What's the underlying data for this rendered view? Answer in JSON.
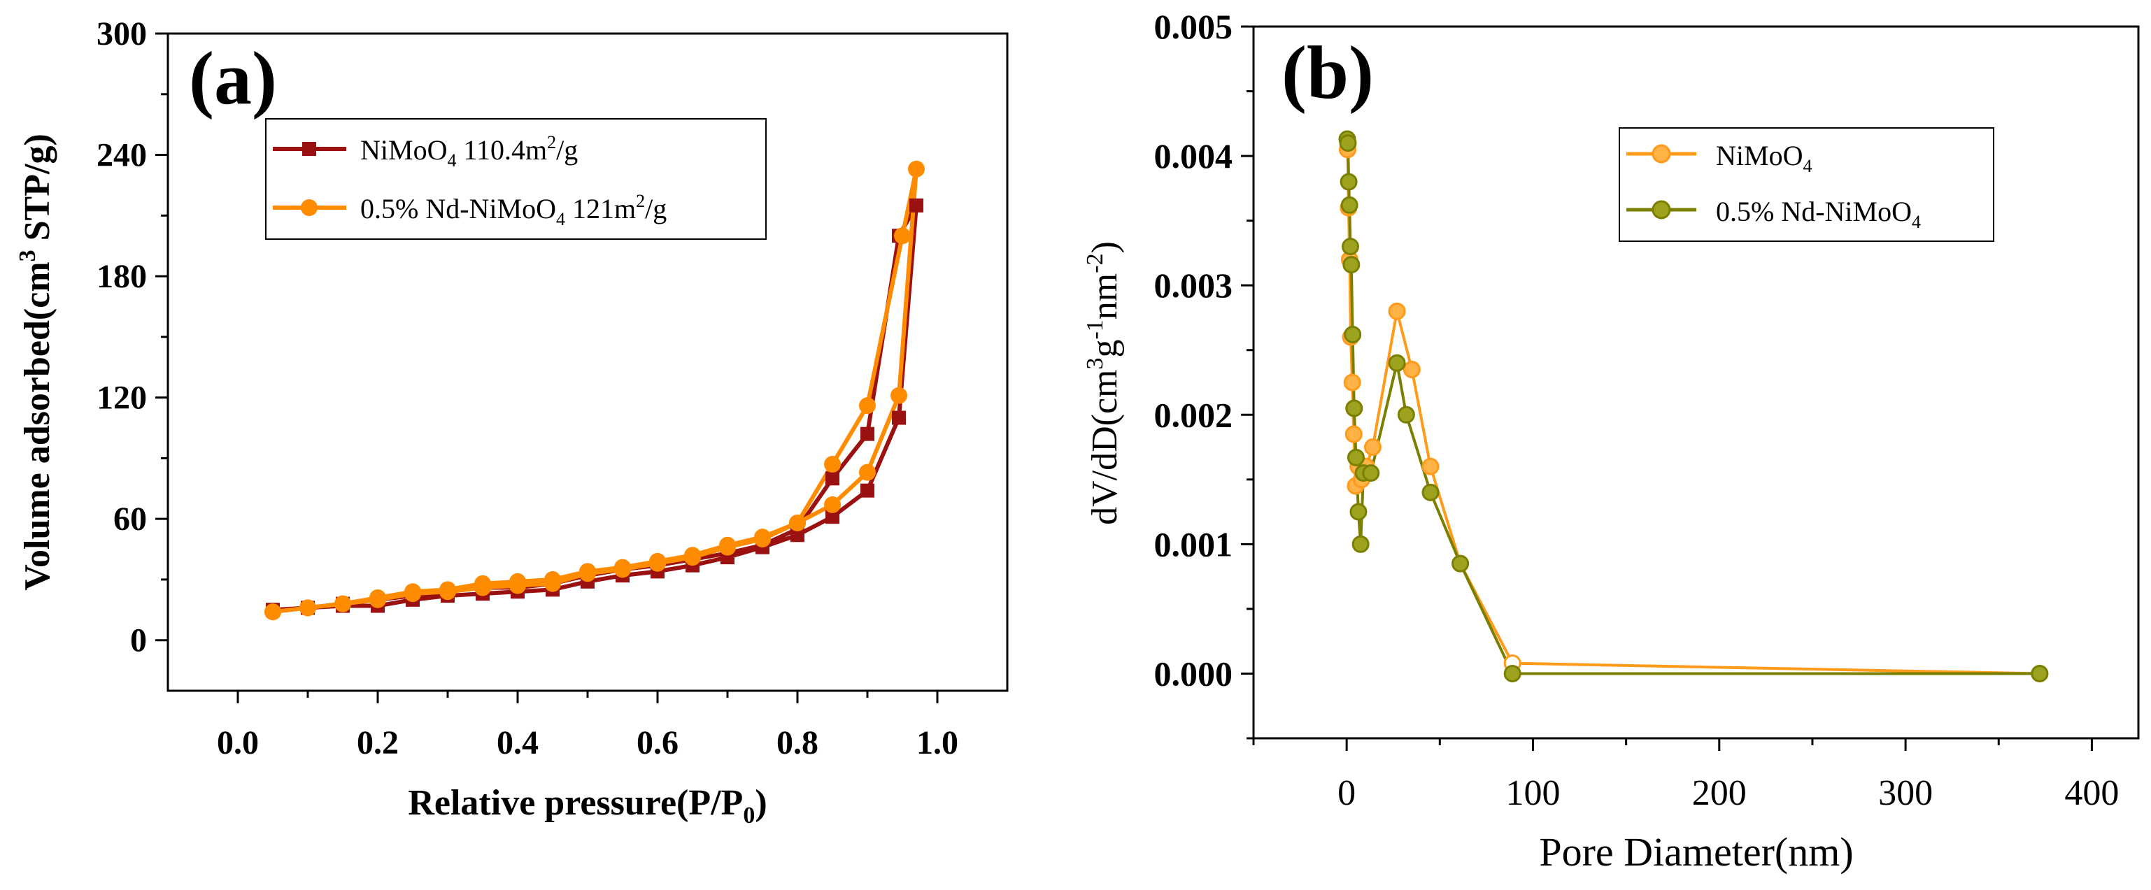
{
  "colors": {
    "axis": "#000000",
    "a_s1": "#9b1111",
    "a_s2": "#ff8c00",
    "b_s1": "#ff9a1a",
    "b_s1_fill": "#ffb347",
    "b_s2": "#7a7f00",
    "b_s2_fill": "#9da31e"
  },
  "chart_data": [
    {
      "id": "a",
      "panel_label": "(a)",
      "type": "line",
      "xlabel_main": "Relative pressure(P/P",
      "xlabel_sub": "0",
      "xlabel_close": ")",
      "ylabel_main": "Volume adsorbed(cm",
      "ylabel_sup": "3",
      "ylabel_rest": " STP/g)",
      "xlim": [
        -0.1,
        1.1
      ],
      "ylim": [
        -25,
        300
      ],
      "xticks": [
        0.0,
        0.2,
        0.4,
        0.6,
        0.8,
        1.0
      ],
      "xtick_labels": [
        "0.0",
        "0.2",
        "0.4",
        "0.6",
        "0.8",
        "1.0"
      ],
      "yticks": [
        0,
        60,
        120,
        180,
        240,
        300
      ],
      "ytick_labels": [
        "0",
        "60",
        "120",
        "180",
        "240",
        "300"
      ],
      "legend_position": "top-left",
      "series": [
        {
          "name": "NiMoO4 110.4m2/g",
          "legend_parts": [
            "NiMoO",
            "4",
            " 110.4m",
            "2",
            "/g"
          ],
          "marker": "square",
          "x": [
            0.05,
            0.1,
            0.15,
            0.2,
            0.25,
            0.3,
            0.35,
            0.4,
            0.45,
            0.5,
            0.55,
            0.6,
            0.65,
            0.7,
            0.75,
            0.8,
            0.85,
            0.9,
            0.945,
            0.97,
            0.945,
            0.9,
            0.85,
            0.8,
            0.75,
            0.7,
            0.65,
            0.6,
            0.55,
            0.5,
            0.45,
            0.4,
            0.35,
            0.3,
            0.25,
            0.2,
            0.15,
            0.1,
            0.05
          ],
          "y": [
            15,
            16,
            17,
            17,
            20,
            22,
            23,
            24,
            25,
            29,
            32,
            34,
            37,
            41,
            46,
            52,
            61,
            74,
            110,
            215,
            200,
            102,
            80,
            55,
            47,
            43,
            40,
            37,
            35,
            32,
            28,
            26,
            26,
            24,
            22,
            20,
            18,
            16,
            15
          ]
        },
        {
          "name": "0.5% Nd-NiMoO4 121m2/g",
          "legend_parts": [
            "0.5% Nd-NiMoO",
            "4",
            " 121m",
            "2",
            "/g"
          ],
          "marker": "circle",
          "x": [
            0.05,
            0.1,
            0.15,
            0.2,
            0.25,
            0.3,
            0.35,
            0.4,
            0.45,
            0.5,
            0.55,
            0.6,
            0.65,
            0.7,
            0.75,
            0.8,
            0.85,
            0.9,
            0.945,
            0.97,
            0.95,
            0.9,
            0.85,
            0.8,
            0.75,
            0.7,
            0.65,
            0.6,
            0.55,
            0.5,
            0.45,
            0.4,
            0.35,
            0.3,
            0.25,
            0.2,
            0.15,
            0.1,
            0.05
          ],
          "y": [
            14,
            16,
            18,
            20,
            23,
            24,
            26,
            27,
            28,
            33,
            35,
            38,
            41,
            46,
            50,
            58,
            67,
            83,
            121,
            233,
            200,
            116,
            87,
            58,
            51,
            47,
            42,
            39,
            36,
            34,
            30,
            29,
            28,
            25,
            24,
            21,
            18,
            16,
            14
          ]
        }
      ]
    },
    {
      "id": "b",
      "panel_label": "(b)",
      "type": "line",
      "xlabel_main": "Pore Diameter(nm)",
      "ylabel_main": "dV/dD(cm",
      "ylabel_sup1": "3",
      "ylabel_mid": "g",
      "ylabel_sup2": "-1",
      "ylabel_mid2": "nm",
      "ylabel_sup3": "-2",
      "ylabel_close": ")",
      "xlim": [
        -50,
        425
      ],
      "ylim": [
        -0.0005,
        0.005
      ],
      "xticks": [
        0,
        100,
        200,
        300,
        400
      ],
      "xtick_labels": [
        "0",
        "100",
        "200",
        "300",
        "400"
      ],
      "yticks": [
        0.0,
        0.001,
        0.002,
        0.003,
        0.004,
        0.005
      ],
      "ytick_labels": [
        "0.000",
        "0.001",
        "0.002",
        "0.003",
        "0.004",
        "0.005"
      ],
      "legend_position": "top-right",
      "series": [
        {
          "name": "NiMoO4",
          "legend_parts": [
            "NiMoO",
            "4"
          ],
          "marker": "circle",
          "x": [
            0.5,
            1.0,
            1.6,
            2.2,
            3.0,
            3.8,
            4.8,
            6.2,
            8.0,
            10.5,
            14.0,
            27.0,
            35.0,
            45.0,
            61.0,
            89.0,
            372.0
          ],
          "y": [
            0.00405,
            0.0036,
            0.0032,
            0.0026,
            0.00225,
            0.00185,
            0.00145,
            0.0016,
            0.0015,
            0.0016,
            0.00175,
            0.0028,
            0.00235,
            0.0016,
            0.00085,
            8e-05,
            0.0
          ],
          "open_markers": [
            false,
            false,
            false,
            false,
            false,
            false,
            false,
            false,
            false,
            false,
            false,
            false,
            false,
            false,
            false,
            true,
            true
          ]
        },
        {
          "name": "0.5% Nd-NiMoO4",
          "legend_parts": [
            "0.5% Nd-NiMoO",
            "4"
          ],
          "marker": "circle",
          "x": [
            0.3,
            0.7,
            1.1,
            1.5,
            2.0,
            2.5,
            3.2,
            4.0,
            5.0,
            6.3,
            7.5,
            9.0,
            13.0,
            27.0,
            32.0,
            45.0,
            61.0,
            89.0,
            372.0
          ],
          "y": [
            0.00413,
            0.0041,
            0.0038,
            0.00362,
            0.0033,
            0.00316,
            0.00262,
            0.00205,
            0.00167,
            0.00125,
            0.001,
            0.00155,
            0.00155,
            0.0024,
            0.002,
            0.0014,
            0.00085,
            0.0,
            0.0
          ],
          "open_markers": [
            false,
            false,
            false,
            false,
            false,
            false,
            false,
            false,
            false,
            false,
            false,
            false,
            false,
            false,
            false,
            false,
            false,
            false,
            false
          ]
        }
      ]
    }
  ]
}
